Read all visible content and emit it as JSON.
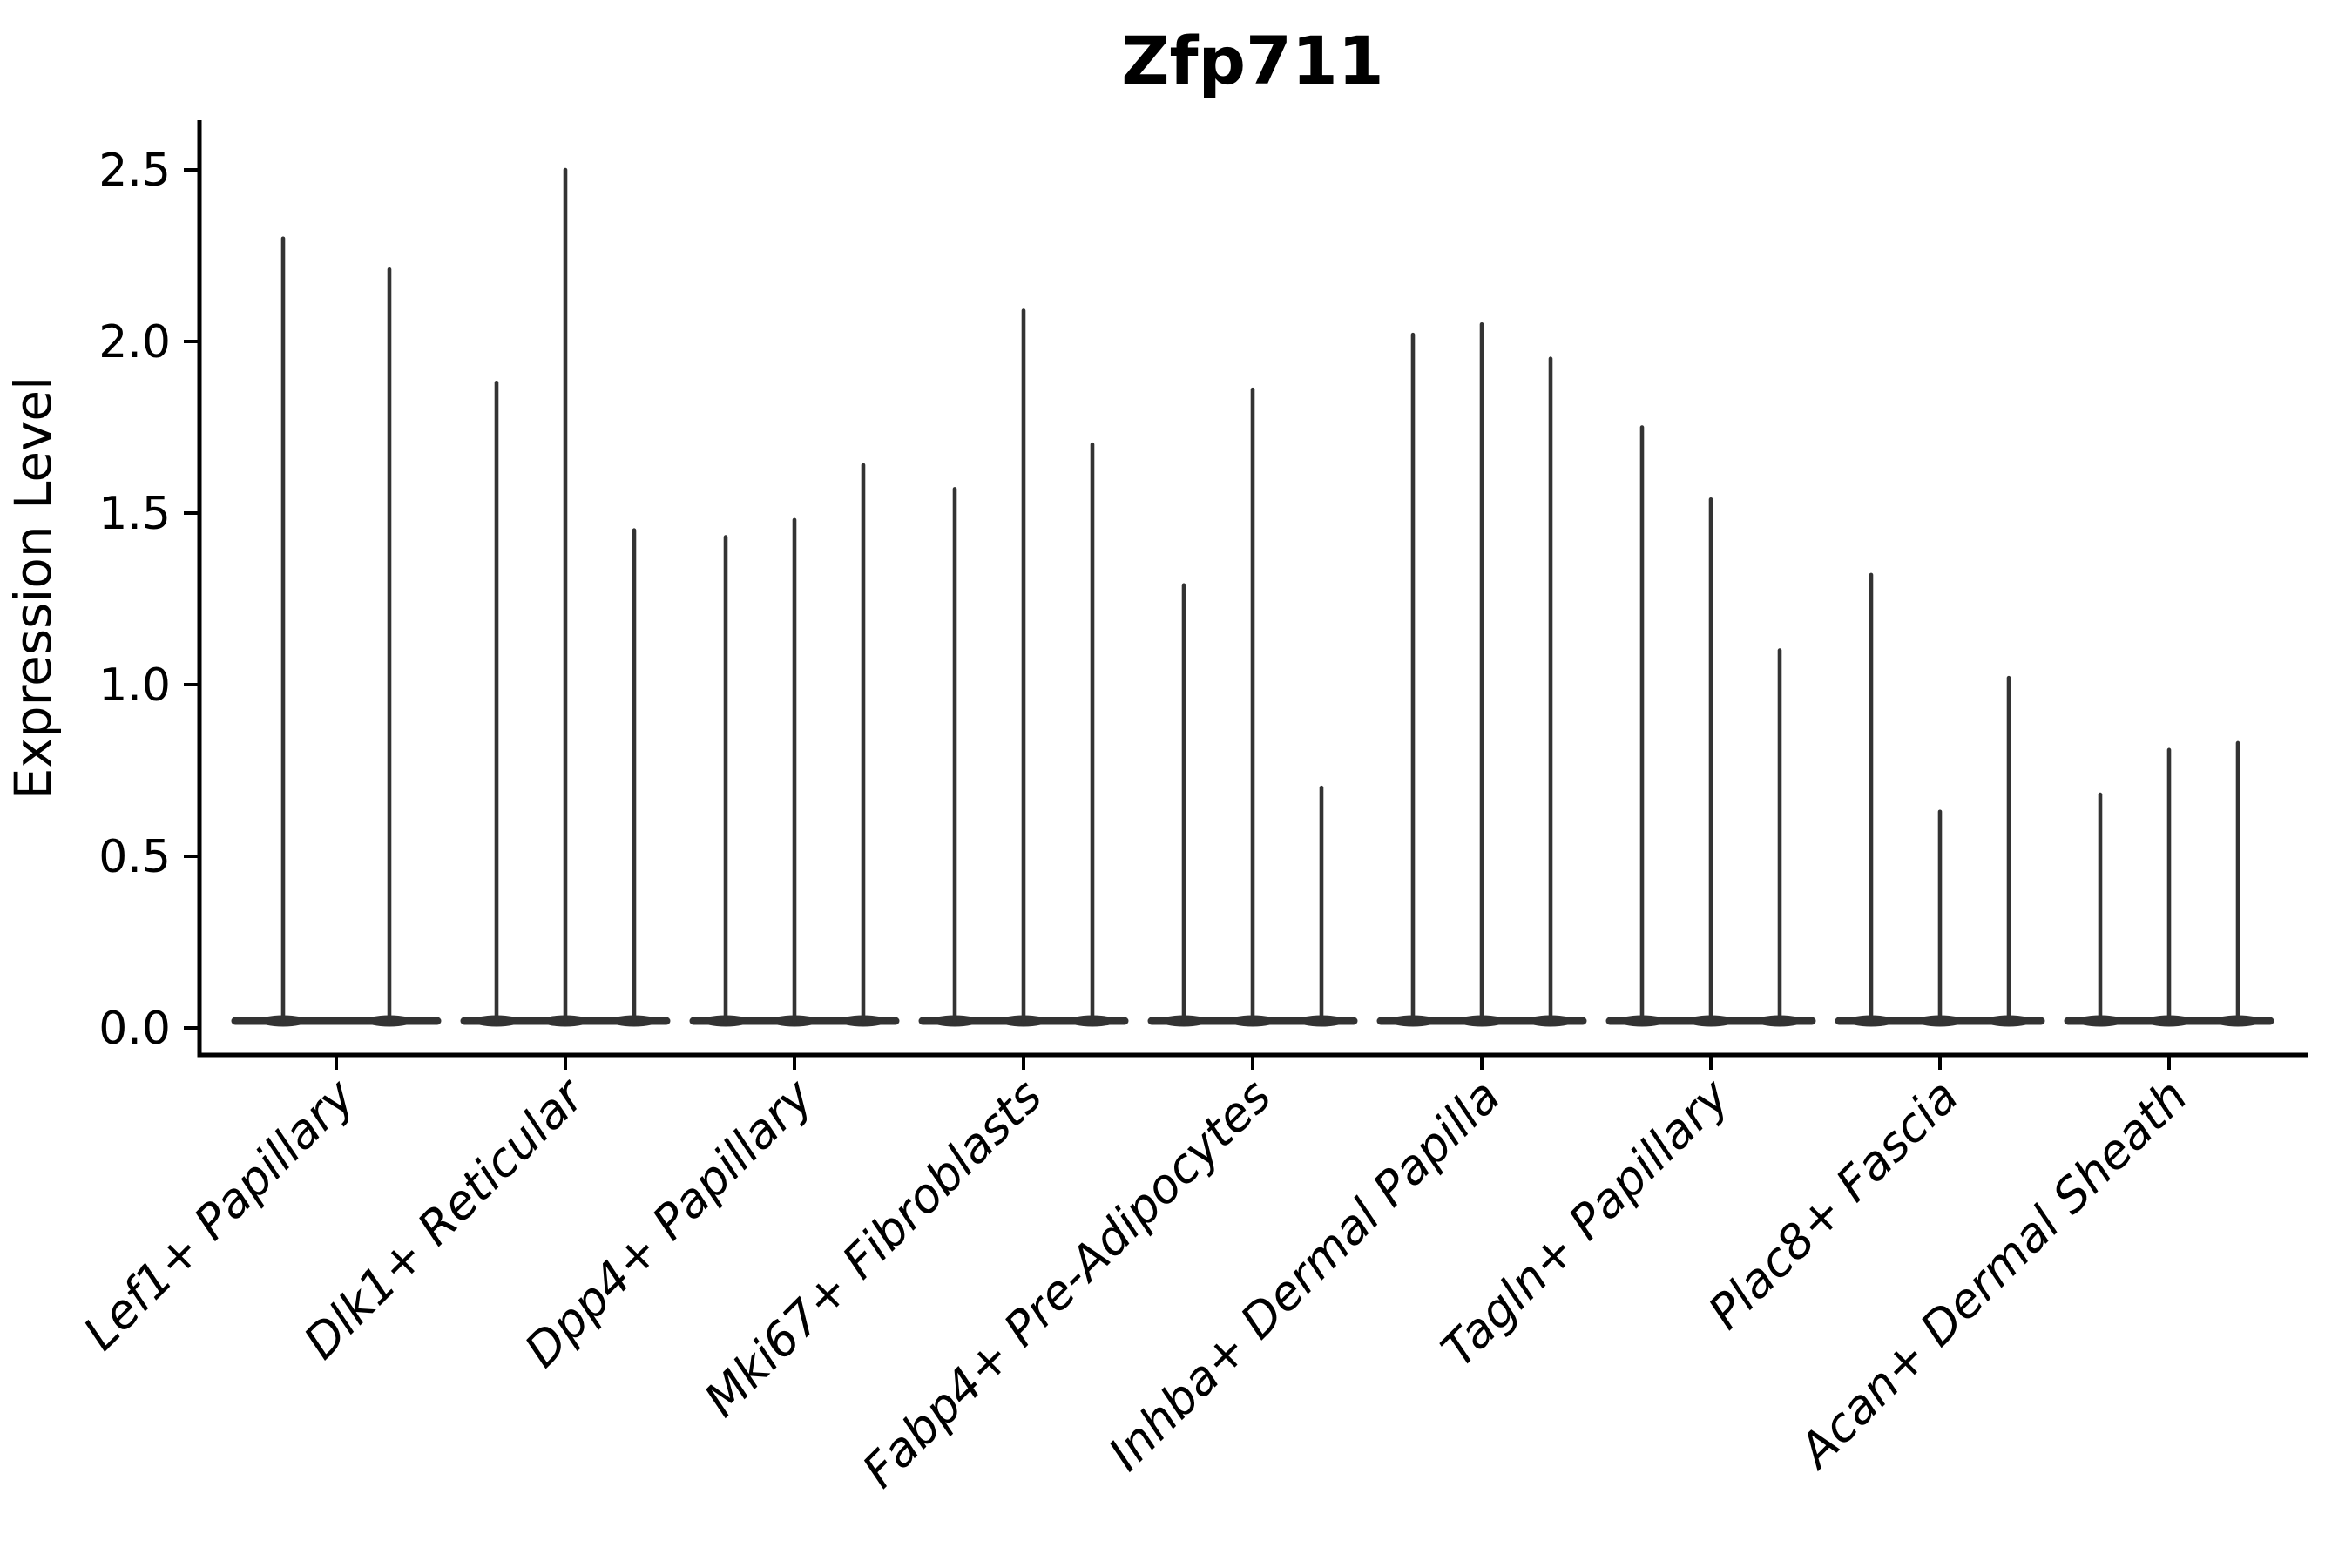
{
  "title": "Zfp711",
  "y_axis": {
    "label": "Expression Level",
    "tick_labels": [
      "0.0",
      "0.5",
      "1.0",
      "1.5",
      "2.0",
      "2.5"
    ]
  },
  "chart_data": {
    "type": "violin",
    "title": "Zfp711",
    "xlabel": "",
    "ylabel": "Expression Level",
    "ylim": [
      -0.08,
      2.62
    ],
    "yticks": [
      0.0,
      0.5,
      1.0,
      1.5,
      2.0,
      2.5
    ],
    "grid": false,
    "legend": false,
    "violin_style": "needle-thin violins: dense flat mass at 0 with a thin spike up to the maximum value",
    "violin_color": "#333333",
    "categories": [
      "Lef1+ Papillary",
      "Dlk1+ Reticular",
      "Dpp4+ Papillary",
      "Mki67+ Fibroblasts",
      "Fabp4+ Pre-Adipocytes",
      "Inhba+ Dermal Papilla",
      "Tagln+ Papillary",
      "Plac8+ Fascia",
      "Acan+ Dermal Sheath"
    ],
    "series": [
      {
        "category": "Lef1+ Papillary",
        "violin_maxima": [
          2.3,
          2.21
        ]
      },
      {
        "category": "Dlk1+ Reticular",
        "violin_maxima": [
          1.88,
          2.5,
          1.45
        ]
      },
      {
        "category": "Dpp4+ Papillary",
        "violin_maxima": [
          1.43,
          1.48,
          1.64
        ]
      },
      {
        "category": "Mki67+ Fibroblasts",
        "violin_maxima": [
          1.57,
          2.09,
          1.7
        ]
      },
      {
        "category": "Fabp4+ Pre-Adipocytes",
        "violin_maxima": [
          1.29,
          1.86,
          0.7
        ]
      },
      {
        "category": "Inhba+ Dermal Papilla",
        "violin_maxima": [
          2.02,
          2.05,
          1.95
        ]
      },
      {
        "category": "Tagln+ Papillary",
        "violin_maxima": [
          1.75,
          1.54,
          1.1
        ]
      },
      {
        "category": "Plac8+ Fascia",
        "violin_maxima": [
          1.32,
          0.63,
          1.02
        ]
      },
      {
        "category": "Acan+ Dermal Sheath",
        "violin_maxima": [
          0.68,
          0.81,
          0.83
        ]
      }
    ]
  }
}
